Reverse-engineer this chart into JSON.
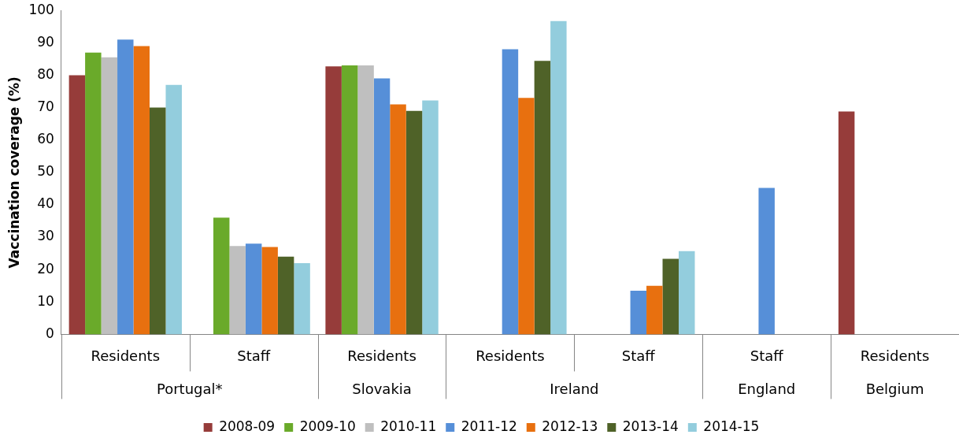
{
  "chart_data": {
    "type": "bar",
    "ylabel": "Vaccination coverage (%)",
    "categories": [
      "Residents",
      "Staff",
      "Residents",
      "Residents",
      "Staff",
      "Staff",
      "Residents"
    ],
    "series": [
      {
        "name": "2008-09",
        "color": "#963c3a",
        "values": [
          80,
          null,
          82.7,
          null,
          null,
          null,
          68.8
        ]
      },
      {
        "name": "2009-10",
        "color": "#6aaa2a",
        "values": [
          87,
          36,
          83,
          null,
          null,
          null,
          null
        ]
      },
      {
        "name": "2010-11",
        "color": "#bfbfbf",
        "values": [
          85.5,
          27.3,
          83,
          null,
          null,
          null,
          null
        ]
      },
      {
        "name": "2011-12",
        "color": "#568fd8",
        "values": [
          91,
          28,
          79,
          88,
          13.5,
          45.2,
          null
        ]
      },
      {
        "name": "2012-13",
        "color": "#e8700f",
        "values": [
          89,
          27,
          71,
          73,
          15,
          null,
          null
        ]
      },
      {
        "name": "2013-14",
        "color": "#4f6228",
        "values": [
          70,
          24,
          69,
          84.4,
          23.3,
          null,
          null
        ]
      },
      {
        "name": "2014-15",
        "color": "#93cddd",
        "values": [
          77,
          22,
          72.2,
          96.7,
          25.7,
          null,
          null
        ]
      }
    ],
    "ylim": [
      0,
      100
    ],
    "yticks": [
      0,
      10,
      20,
      30,
      40,
      50,
      60,
      70,
      80,
      90,
      100
    ],
    "grid": false,
    "legend": "bottom",
    "annotations": [
      "Portugal*",
      "Slovakia",
      "Ireland",
      "England",
      "Belgium"
    ]
  }
}
